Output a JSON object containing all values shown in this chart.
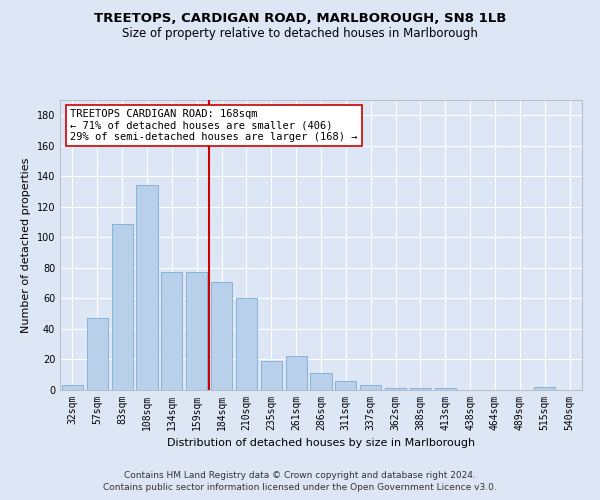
{
  "title": "TREETOPS, CARDIGAN ROAD, MARLBOROUGH, SN8 1LB",
  "subtitle": "Size of property relative to detached houses in Marlborough",
  "xlabel": "Distribution of detached houses by size in Marlborough",
  "ylabel": "Number of detached properties",
  "categories": [
    "32sqm",
    "57sqm",
    "83sqm",
    "108sqm",
    "134sqm",
    "159sqm",
    "184sqm",
    "210sqm",
    "235sqm",
    "261sqm",
    "286sqm",
    "311sqm",
    "337sqm",
    "362sqm",
    "388sqm",
    "413sqm",
    "438sqm",
    "464sqm",
    "489sqm",
    "515sqm",
    "540sqm"
  ],
  "values": [
    3,
    47,
    109,
    134,
    77,
    77,
    71,
    60,
    19,
    22,
    11,
    6,
    3,
    1,
    1,
    1,
    0,
    0,
    0,
    2,
    0
  ],
  "bar_color": "#b8d0ea",
  "bar_edge_color": "#7badd4",
  "vline_x": 5.5,
  "vline_color": "#cc0000",
  "annotation_text": "TREETOPS CARDIGAN ROAD: 168sqm\n← 71% of detached houses are smaller (406)\n29% of semi-detached houses are larger (168) →",
  "annotation_box_color": "#ffffff",
  "annotation_box_edge": "#cc0000",
  "ylim": [
    0,
    190
  ],
  "yticks": [
    0,
    20,
    40,
    60,
    80,
    100,
    120,
    140,
    160,
    180
  ],
  "background_color": "#dce6f5",
  "grid_color": "#ffffff",
  "footer": "Contains HM Land Registry data © Crown copyright and database right 2024.\nContains public sector information licensed under the Open Government Licence v3.0.",
  "title_fontsize": 9.5,
  "subtitle_fontsize": 8.5,
  "xlabel_fontsize": 8,
  "ylabel_fontsize": 8,
  "tick_fontsize": 7,
  "annotation_fontsize": 7.5,
  "footer_fontsize": 6.5
}
